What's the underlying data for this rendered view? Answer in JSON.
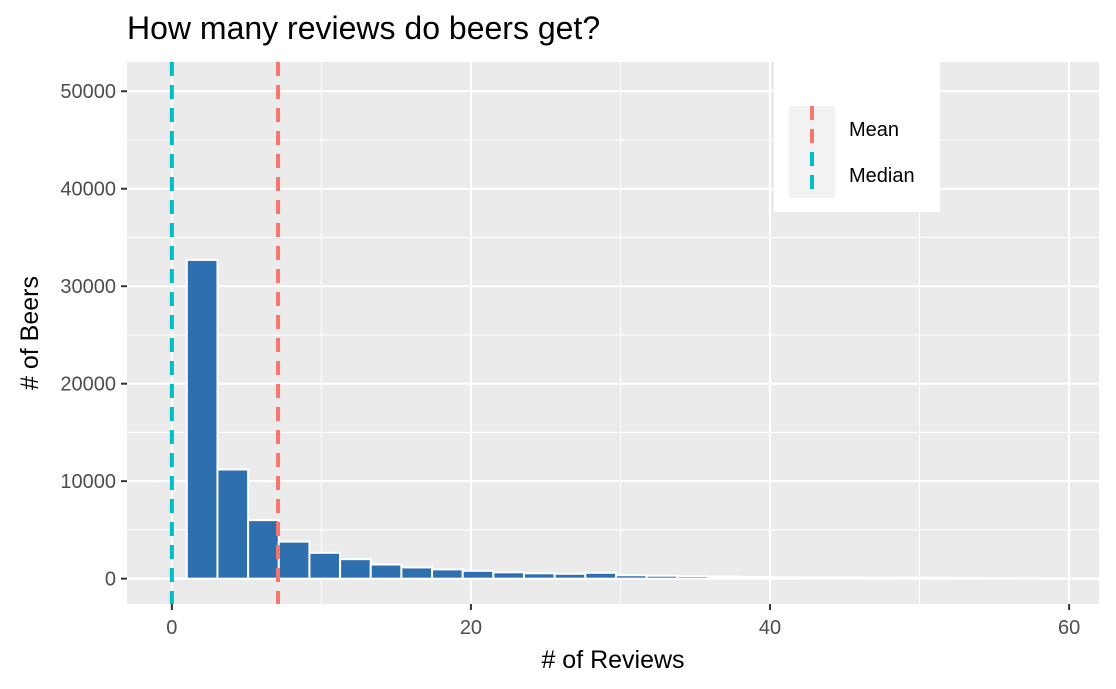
{
  "chart_data": {
    "type": "bar",
    "title": "How many reviews do beers get?",
    "xlabel": "# of Reviews",
    "ylabel": "# of Beers",
    "xlim": [
      -3,
      62
    ],
    "ylim": [
      -2600,
      53000
    ],
    "x_ticks": [
      0,
      20,
      40,
      60
    ],
    "y_ticks": [
      0,
      10000,
      20000,
      30000,
      40000,
      50000
    ],
    "x_tick_labels": [
      "0",
      "20",
      "40",
      "60"
    ],
    "y_tick_labels": [
      "0",
      "10000",
      "20000",
      "30000",
      "40000",
      "50000"
    ],
    "grid": true,
    "bin_width": 2.05,
    "bins": [
      {
        "x0": 1.0,
        "value": 32700
      },
      {
        "x0": 3.05,
        "value": 11200
      },
      {
        "x0": 5.1,
        "value": 6000
      },
      {
        "x0": 7.15,
        "value": 3800
      },
      {
        "x0": 9.2,
        "value": 2650
      },
      {
        "x0": 11.25,
        "value": 2000
      },
      {
        "x0": 13.3,
        "value": 1450
      },
      {
        "x0": 15.35,
        "value": 1150
      },
      {
        "x0": 17.4,
        "value": 950
      },
      {
        "x0": 19.45,
        "value": 800
      },
      {
        "x0": 21.5,
        "value": 650
      },
      {
        "x0": 23.55,
        "value": 550
      },
      {
        "x0": 25.6,
        "value": 500
      },
      {
        "x0": 27.65,
        "value": 600
      },
      {
        "x0": 29.7,
        "value": 350
      },
      {
        "x0": 31.75,
        "value": 300
      },
      {
        "x0": 33.8,
        "value": 250
      },
      {
        "x0": 35.85,
        "value": 200
      },
      {
        "x0": 37.9,
        "value": 170
      },
      {
        "x0": 39.95,
        "value": 150
      },
      {
        "x0": 42.0,
        "value": 130
      },
      {
        "x0": 44.05,
        "value": 110
      },
      {
        "x0": 46.1,
        "value": 100
      },
      {
        "x0": 48.15,
        "value": 90
      },
      {
        "x0": 50.2,
        "value": 80
      },
      {
        "x0": 52.25,
        "value": 70
      },
      {
        "x0": 54.3,
        "value": 60
      },
      {
        "x0": 56.35,
        "value": 50
      }
    ],
    "reference_lines": [
      {
        "name": "Mean",
        "x": 7.1,
        "color": "#F8766D"
      },
      {
        "name": "Median",
        "x": 0,
        "color": "#00BFC4"
      }
    ],
    "legend": {
      "position": "top-right",
      "items": [
        "Mean",
        "Median"
      ]
    },
    "colors": {
      "bar_fill": "#2E6FAF",
      "bar_outline": "#ffffff",
      "panel": "#EBEBEB",
      "grid": "#ffffff"
    }
  }
}
